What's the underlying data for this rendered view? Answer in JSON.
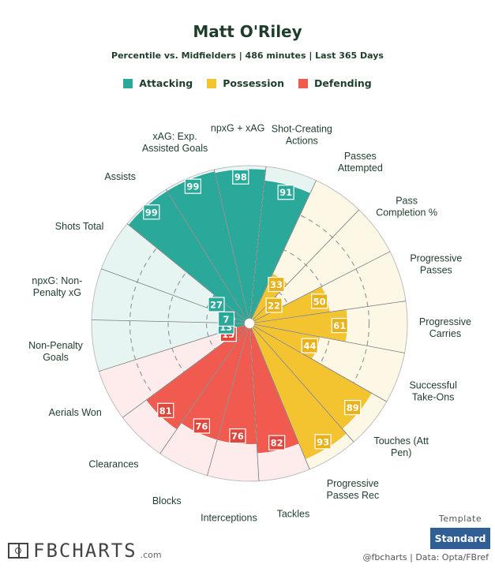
{
  "header": {
    "title": "Matt O'Riley",
    "subtitle": "Percentile vs. Midfielders | 486 minutes | Last 365 Days"
  },
  "legend": [
    {
      "name": "Attacking",
      "color": "#2aa89a"
    },
    {
      "name": "Possession",
      "color": "#f4c430"
    },
    {
      "name": "Defending",
      "color": "#f05a4f"
    }
  ],
  "chart_data": {
    "type": "polar-bar",
    "title": "Matt O'Riley",
    "subtitle": "Percentile vs. Midfielders | 486 minutes | Last 365 Days",
    "range": [
      0,
      100
    ],
    "categories": [
      {
        "label": "npxG + xAG",
        "group": "Attacking",
        "value": 98
      },
      {
        "label": "Shot-Creating Actions",
        "group": "Attacking",
        "value": 91
      },
      {
        "label": "Passes Attempted",
        "group": "Possession",
        "value": 33
      },
      {
        "label": "Pass Completion %",
        "group": "Possession",
        "value": 22
      },
      {
        "label": "Progressive Passes",
        "group": "Possession",
        "value": 50
      },
      {
        "label": "Progressive Carries",
        "group": "Possession",
        "value": 61
      },
      {
        "label": "Successful Take-Ons",
        "group": "Possession",
        "value": 44
      },
      {
        "label": "Touches (Att Pen)",
        "group": "Possession",
        "value": 89
      },
      {
        "label": "Progressive Passes Rec",
        "group": "Possession",
        "value": 93
      },
      {
        "label": "Tackles",
        "group": "Defending",
        "value": 82
      },
      {
        "label": "Interceptions",
        "group": "Defending",
        "value": 76
      },
      {
        "label": "Blocks",
        "group": "Defending",
        "value": 76
      },
      {
        "label": "Clearances",
        "group": "Defending",
        "value": 81
      },
      {
        "label": "Aerials Won",
        "group": "Defending",
        "value": 15
      },
      {
        "label": "Non-Penalty Goals",
        "group": "Attacking",
        "value": 13
      },
      {
        "label": "npxG: Non-Penalty xG",
        "group": "Attacking",
        "value": 7
      },
      {
        "label": "Shots Total",
        "group": "Attacking",
        "value": 27
      },
      {
        "label": "Assists",
        "group": "Attacking",
        "value": 99
      },
      {
        "label": "xAG: Exp. Assisted Goals",
        "group": "Attacking",
        "value": 99
      }
    ],
    "label_lines": [
      [
        "npxG + xAG"
      ],
      [
        "Shot-Creating",
        "Actions"
      ],
      [
        "Passes",
        "Attempted"
      ],
      [
        "Pass",
        "Completion %"
      ],
      [
        "Progressive",
        "Passes"
      ],
      [
        "Progressive",
        "Carries"
      ],
      [
        "Successful",
        "Take-Ons"
      ],
      [
        "Touches (Att",
        "Pen)"
      ],
      [
        "Progressive",
        "Passes Rec"
      ],
      [
        "Tackles"
      ],
      [
        "Interceptions"
      ],
      [
        "Blocks"
      ],
      [
        "Clearances"
      ],
      [
        "Aerials Won"
      ],
      [
        "Non-Penalty",
        "Goals"
      ],
      [
        "npxG: Non-",
        "Penalty xG"
      ],
      [
        "Shots Total"
      ],
      [
        "Assists"
      ],
      [
        "xAG: Exp.",
        "Assisted Goals"
      ]
    ],
    "colors": {
      "Attacking": {
        "fill": "#2aa89a",
        "bg": "#e6f5f2",
        "label": "#2aa89a"
      },
      "Possession": {
        "fill": "#f4c430",
        "bg": "#fdf7e6",
        "label": "#e8b21a"
      },
      "Defending": {
        "fill": "#f05a4f",
        "bg": "#fdeceb",
        "label": "#e0463c"
      }
    }
  },
  "footer": {
    "template_label": "Template",
    "template_button": "Standard",
    "credit": "@fbcharts | Data: Opta/FBref",
    "logo_text": "FBCHARTS",
    "logo_domain": ".com"
  }
}
